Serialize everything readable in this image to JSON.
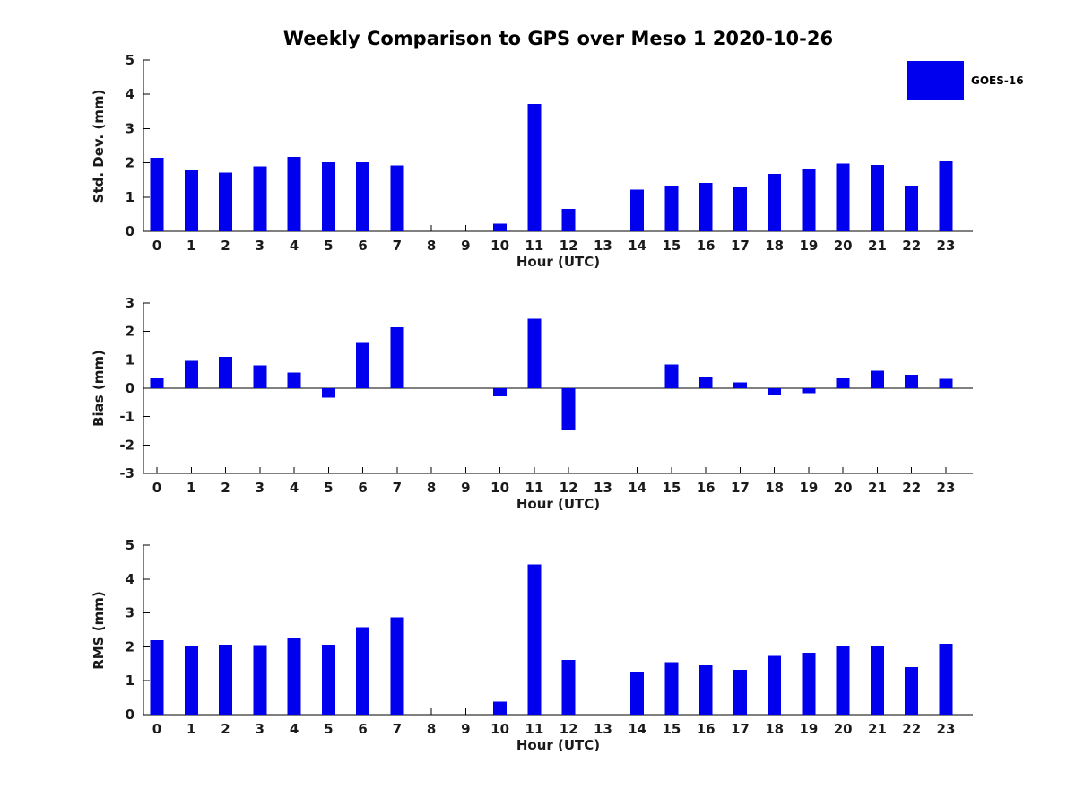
{
  "title": "Weekly Comparison to GPS over Meso 1 2020-10-26",
  "legend": {
    "label": "GOES-16",
    "color": "#0000EE"
  },
  "colors": {
    "bar": "#0000EE",
    "axis": "#000000",
    "text": "#1a1a1a",
    "background": "#ffffff"
  },
  "chart_data": [
    {
      "type": "bar",
      "ylabel": "Std. Dev. (mm)",
      "xlabel": "Hour (UTC)",
      "series_name": "GOES-16",
      "categories": [
        "0",
        "1",
        "2",
        "3",
        "4",
        "5",
        "6",
        "7",
        "8",
        "9",
        "10",
        "11",
        "12",
        "13",
        "14",
        "15",
        "16",
        "17",
        "18",
        "19",
        "20",
        "21",
        "22",
        "23"
      ],
      "values": [
        2.15,
        1.78,
        1.72,
        1.9,
        2.17,
        2.02,
        2.02,
        1.93,
        0,
        0,
        0.22,
        3.72,
        0.66,
        0,
        1.22,
        1.34,
        1.42,
        1.31,
        1.67,
        1.8,
        1.98,
        1.94,
        1.34,
        2.04
      ],
      "ylim": [
        0,
        5
      ],
      "yticks": [
        0,
        1,
        2,
        3,
        4,
        5
      ],
      "grid": false,
      "legend_position": "upper-right-outside"
    },
    {
      "type": "bar",
      "ylabel": "Bias (mm)",
      "xlabel": "Hour (UTC)",
      "series_name": "GOES-16",
      "categories": [
        "0",
        "1",
        "2",
        "3",
        "4",
        "5",
        "6",
        "7",
        "8",
        "9",
        "10",
        "11",
        "12",
        "13",
        "14",
        "15",
        "16",
        "17",
        "18",
        "19",
        "20",
        "21",
        "22",
        "23"
      ],
      "values": [
        0.35,
        0.97,
        1.1,
        0.8,
        0.55,
        -0.33,
        1.62,
        2.15,
        0,
        0,
        -0.28,
        2.45,
        -1.45,
        0,
        0,
        0.83,
        0.4,
        0.2,
        -0.22,
        -0.18,
        0.35,
        0.62,
        0.47,
        0.33
      ],
      "ylim": [
        -3,
        3
      ],
      "yticks": [
        -3,
        -2,
        -1,
        0,
        1,
        2,
        3
      ],
      "grid": false,
      "zero_line": true
    },
    {
      "type": "bar",
      "ylabel": "RMS (mm)",
      "xlabel": "Hour (UTC)",
      "series_name": "GOES-16",
      "categories": [
        "0",
        "1",
        "2",
        "3",
        "4",
        "5",
        "6",
        "7",
        "8",
        "9",
        "10",
        "11",
        "12",
        "13",
        "14",
        "15",
        "16",
        "17",
        "18",
        "19",
        "20",
        "21",
        "22",
        "23"
      ],
      "values": [
        2.19,
        2.03,
        2.06,
        2.05,
        2.25,
        2.06,
        2.58,
        2.87,
        0,
        0,
        0.38,
        4.43,
        1.61,
        0,
        1.25,
        1.55,
        1.46,
        1.32,
        1.73,
        1.82,
        2.01,
        2.04,
        1.4,
        2.09
      ],
      "ylim": [
        0,
        5
      ],
      "yticks": [
        0,
        1,
        2,
        3,
        4,
        5
      ],
      "grid": false
    }
  ]
}
